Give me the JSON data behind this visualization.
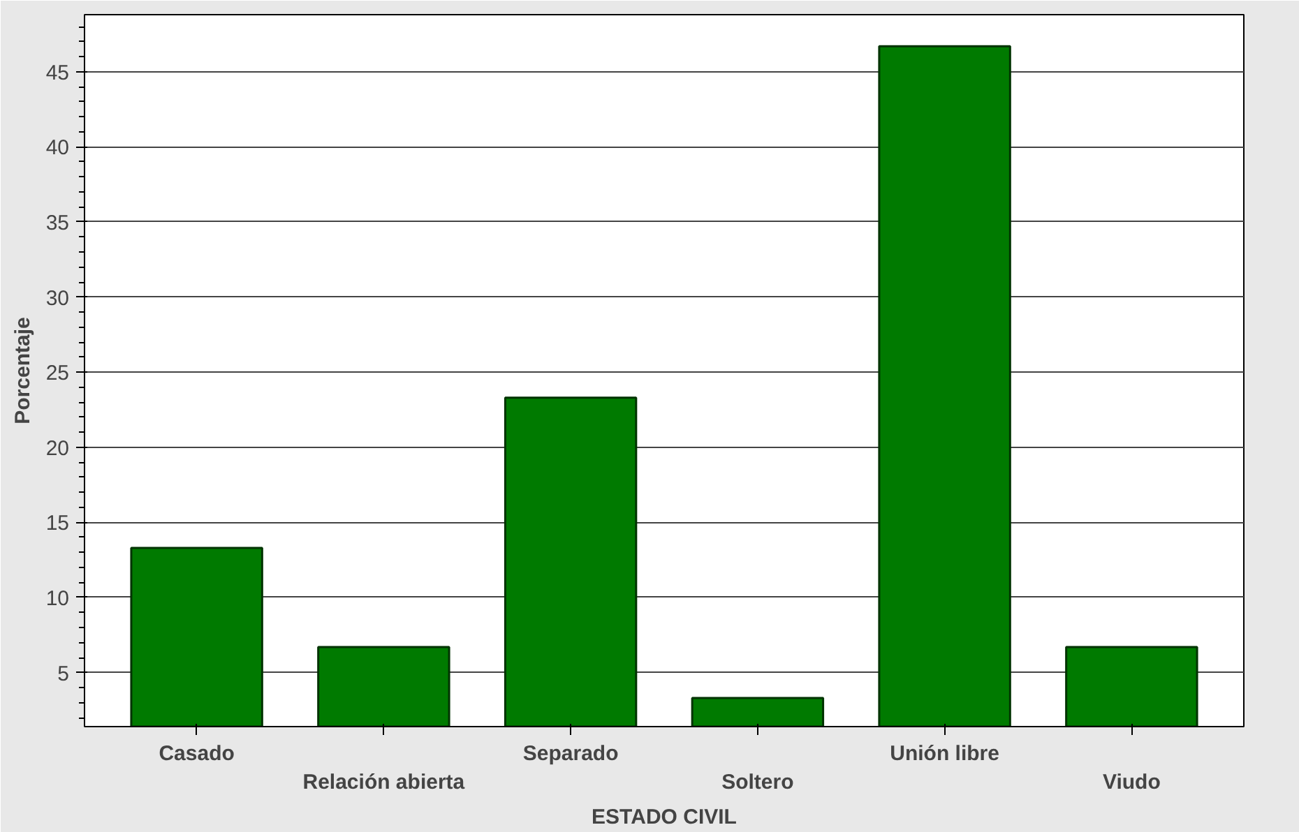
{
  "chart_data": {
    "type": "bar",
    "xlabel": "ESTADO CIVIL",
    "ylabel": "Porcentaje",
    "categories": [
      "Casado",
      "Relación abierta",
      "Separado",
      "Soltero",
      "Unión libre",
      "Viudo"
    ],
    "values": [
      13.3,
      6.7,
      23.3,
      3.3,
      46.7,
      6.7
    ],
    "color": "#007a00",
    "ylim": [
      1.4,
      48.8
    ],
    "yticks": [
      5,
      10,
      15,
      20,
      25,
      30,
      35,
      40,
      45
    ],
    "grid": "y"
  }
}
